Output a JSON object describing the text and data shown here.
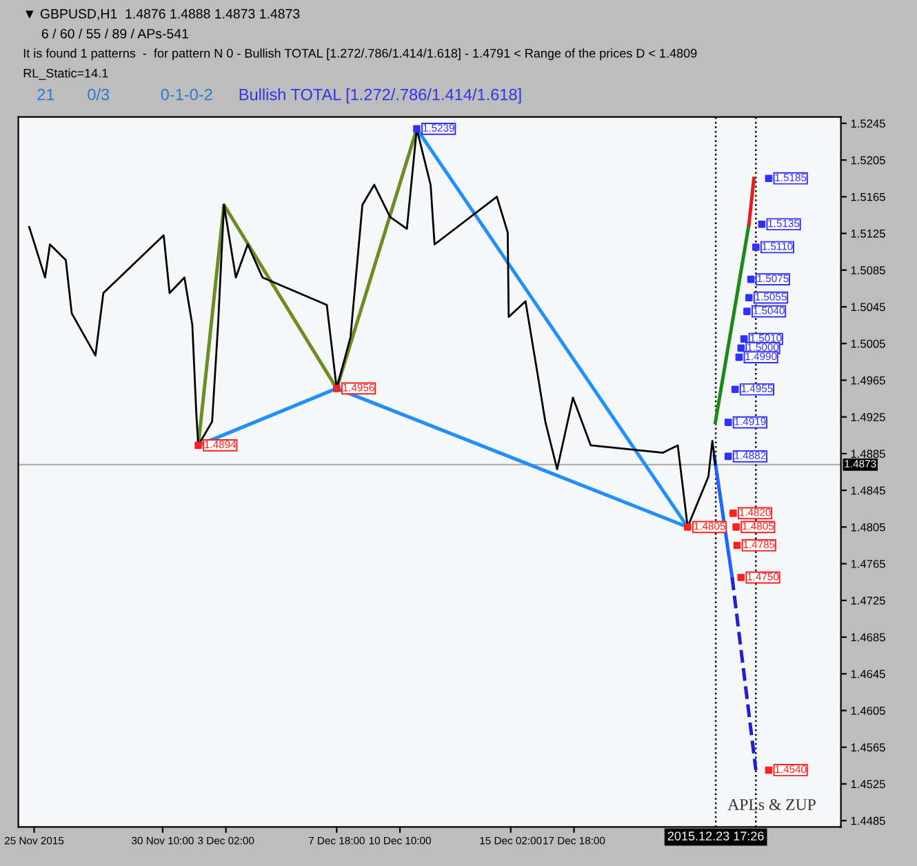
{
  "chart_data": {
    "type": "line",
    "title": "▼ GBPUSD,H1  1.4876 1.4888 1.4873 1.4873",
    "subtitle": "6 / 60 / 55 / 89 / APs-541",
    "annotations": [
      "It is found 1 patterns  -  for pattern N 0 - Bullish TOTAL [1.272/.786/1.414/1.618] - 1.4791 < Range of the prices D < 1.4809",
      "RL_Static=14.1",
      "21",
      "0/3",
      "0-1-0-2",
      "Bullish TOTAL [1.272/.786/1.414/1.618]",
      "APLs & ZUP"
    ],
    "xlim": [
      "2015-11-24T08:00",
      "2015-12-29T00:00"
    ],
    "ylim": [
      1.4478,
      1.5252
    ],
    "xticks": [
      {
        "value": "2015-11-25T00:00",
        "label": "25 Nov 2015"
      },
      {
        "value": "2015-11-30T10:00",
        "label": "30 Nov 10:00"
      },
      {
        "value": "2015-12-03T02:00",
        "label": "3 Dec 02:00"
      },
      {
        "value": "2015-12-07T18:00",
        "label": "7 Dec 18:00"
      },
      {
        "value": "2015-12-10T10:00",
        "label": "10 Dec 10:00"
      },
      {
        "value": "2015-12-15T02:00",
        "label": "15 Dec 02:00"
      },
      {
        "value": "2015-12-17T18:00",
        "label": "17 Dec 18:00"
      }
    ],
    "yticks": [
      1.4485,
      1.4525,
      1.4565,
      1.4605,
      1.4645,
      1.4685,
      1.4725,
      1.4765,
      1.4805,
      1.4845,
      1.4885,
      1.4925,
      1.4965,
      1.5005,
      1.5045,
      1.5085,
      1.5125,
      1.5165,
      1.5205,
      1.5245
    ],
    "grid": false,
    "legend": false,
    "ref_lines": [
      {
        "axis": "y",
        "value": 1.4873,
        "label": "1.4873",
        "color": "#b0b0b0",
        "line_style": "solid"
      },
      {
        "axis": "x",
        "value": "2015-12-23T17:26",
        "label": "2015.12.23 17:26",
        "color": "#000000",
        "line_style": "dotted"
      },
      {
        "axis": "x",
        "value": "2015-12-25T10:00",
        "color": "#000000",
        "line_style": "dotted"
      }
    ],
    "series": [
      {
        "color": "#000000",
        "x": [
          "2015-11-24T19:00",
          "2015-11-25T11:00",
          "2015-11-25T16:00",
          "2015-11-26T08:00",
          "2015-11-26T14:00",
          "2015-11-27T14:00",
          "2015-11-27T22:00",
          "2015-11-30T11:00",
          "2015-11-30T17:00",
          "2015-12-01T08:00",
          "2015-12-01T16:00",
          "2015-12-01T20:00",
          "2015-12-01T22:00",
          "2015-12-02T12:00",
          "2015-12-02T18:00",
          "2015-12-03T00:00",
          "2015-12-03T12:00",
          "2015-12-04T00:00",
          "2015-12-04T15:00",
          "2015-12-07T08:00",
          "2015-12-07T18:00",
          "2015-12-08T08:00",
          "2015-12-08T20:00",
          "2015-12-09T08:00",
          "2015-12-10T00:00",
          "2015-12-10T17:00",
          "2015-12-11T03:00",
          "2015-12-11T17:00",
          "2015-12-11T21:00",
          "2015-12-14T12:00",
          "2015-12-14T23:00",
          "2015-12-15T00:00",
          "2015-12-15T17:00",
          "2015-12-16T05:00",
          "2015-12-16T13:00",
          "2015-12-17T01:00",
          "2015-12-17T17:00",
          "2015-12-18T11:00",
          "2015-12-21T12:00",
          "2015-12-22T03:00",
          "2015-12-22T13:00",
          "2015-12-23T10:00",
          "2015-12-23T14:00",
          "2015-12-23T17:00"
        ],
        "values": [
          1.5132,
          1.5077,
          1.5113,
          1.5096,
          1.5038,
          1.4992,
          1.506,
          1.5123,
          1.506,
          1.5077,
          1.5025,
          1.4929,
          1.4894,
          1.492,
          1.5025,
          1.5156,
          1.5077,
          1.5113,
          1.5077,
          1.5047,
          1.4956,
          1.5012,
          1.5156,
          1.5178,
          1.5143,
          1.513,
          1.5239,
          1.5178,
          1.5113,
          1.5165,
          1.5126,
          1.5034,
          1.5051,
          1.4973,
          1.492,
          1.4868,
          1.4946,
          1.4894,
          1.4886,
          1.4894,
          1.4805,
          1.486,
          1.4899,
          1.4873
        ],
        "line_style": "solid",
        "marker": "none"
      },
      {
        "color": "#6b8e23",
        "x": [
          "2015-12-01T22:00",
          "2015-12-03T00:00",
          "2015-12-07T18:00",
          "2015-12-11T03:00"
        ],
        "values": [
          1.4894,
          1.5156,
          1.4956,
          1.5239
        ],
        "line_style": "solid",
        "marker": "none"
      },
      {
        "color": "#1e90ff",
        "x": [
          "2015-12-01T22:00",
          "2015-12-07T18:00",
          "2015-12-22T13:00"
        ],
        "values": [
          1.4894,
          1.4956,
          1.4805
        ],
        "line_style": "solid",
        "marker": "none"
      },
      {
        "color": "#1e90ff",
        "x": [
          "2015-12-11T03:00",
          "2015-12-22T13:00"
        ],
        "values": [
          1.5239,
          1.4805
        ],
        "line_style": "solid",
        "marker": "none"
      },
      {
        "color": "#1a8a1a",
        "x": [
          "2015-12-23T17:00",
          "2015-12-25T03:00"
        ],
        "values": [
          1.4919,
          1.5135
        ],
        "line_style": "solid",
        "marker": "none"
      },
      {
        "color": "#e02020",
        "x": [
          "2015-12-25T03:00",
          "2015-12-25T08:00"
        ],
        "values": [
          1.5135,
          1.5185
        ],
        "line_style": "solid",
        "marker": "none"
      },
      {
        "color": "#1e64ff",
        "x": [
          "2015-12-23T16:00",
          "2015-12-24T10:00"
        ],
        "values": [
          1.4882,
          1.475
        ],
        "line_style": "solid",
        "marker": "none"
      },
      {
        "color": "#2020d0",
        "x": [
          "2015-12-24T10:00",
          "2015-12-25T10:00"
        ],
        "values": [
          1.475,
          1.454
        ],
        "line_style": "dashed",
        "marker": "none"
      },
      {
        "type": "scatter",
        "color": "#3030ff",
        "marker": "square",
        "x": [
          "2015-12-25T23:00",
          "2015-12-25T16:00",
          "2015-12-25T10:00",
          "2015-12-25T05:00",
          "2015-12-25T03:00",
          "2015-12-25T01:00",
          "2015-12-24T22:00",
          "2015-12-24T19:00",
          "2015-12-24T17:00",
          "2015-12-24T13:00",
          "2015-12-24T06:00",
          "2015-12-24T06:00"
        ],
        "values": [
          1.5185,
          1.5135,
          1.511,
          1.5075,
          1.5055,
          1.504,
          1.501,
          1.5,
          1.499,
          1.4955,
          1.4919,
          1.4882
        ],
        "value_labels": [
          "1.5185",
          "1.5135",
          "1.5110",
          "1.5075",
          "1.5055",
          "1.5040",
          "1.5010",
          "1.5000",
          "1.4990",
          "1.4955",
          "1.4919",
          "1.4882"
        ]
      },
      {
        "type": "scatter",
        "color": "#ff2020",
        "marker": "square",
        "x": [
          "2015-12-24T11:00",
          "2015-12-24T14:00",
          "2015-12-24T15:00",
          "2015-12-24T19:00",
          "2015-12-25T23:00"
        ],
        "values": [
          1.482,
          1.4805,
          1.4785,
          1.475,
          1.454
        ],
        "value_labels": [
          "1.4820",
          "1.4805",
          "1.4785",
          "1.4750",
          "1.4540"
        ]
      },
      {
        "type": "scatter",
        "color": "#3030ff",
        "marker": "square",
        "x": [
          "2015-12-11T03:00"
        ],
        "values": [
          1.5239
        ],
        "value_labels": [
          "1.5239"
        ]
      },
      {
        "type": "scatter",
        "color": "#ff2020",
        "marker": "square",
        "x": [
          "2015-12-07T18:00",
          "2015-12-01T22:00",
          "2015-12-22T13:00"
        ],
        "values": [
          1.4956,
          1.4894,
          1.4805
        ],
        "value_labels": [
          "1.4956",
          "1.4894",
          "1.4805"
        ]
      }
    ]
  }
}
